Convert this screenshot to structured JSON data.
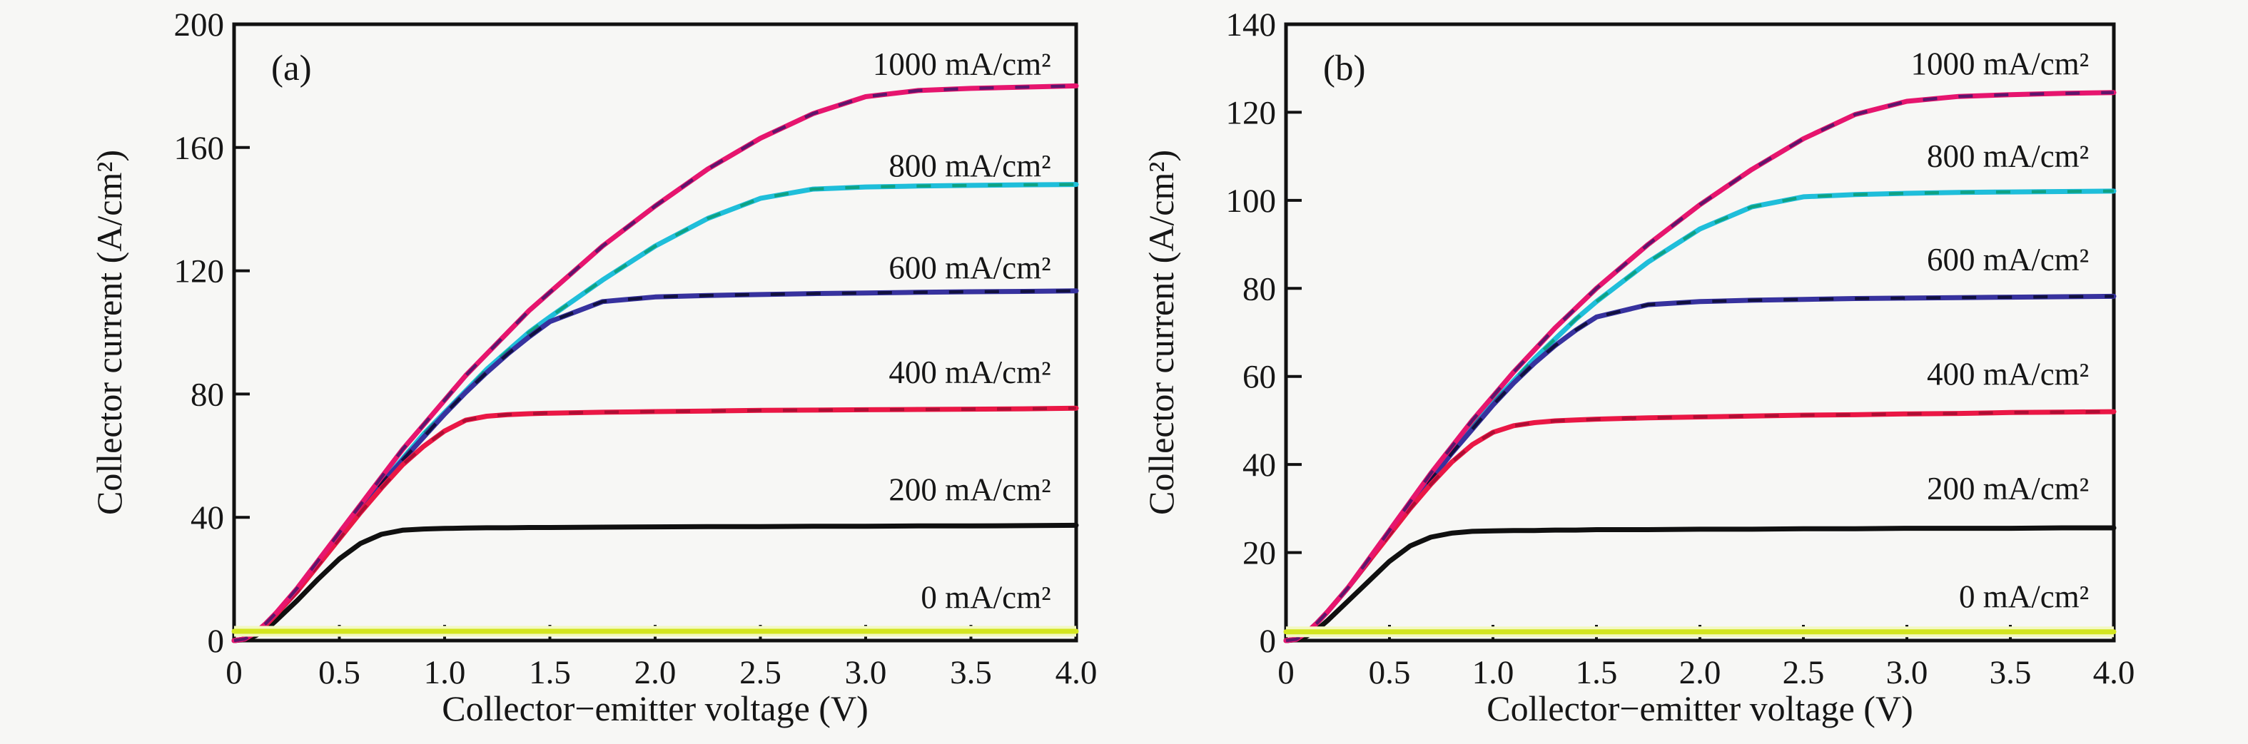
{
  "figure": {
    "background": "#f7f7f5",
    "axis_color": "#111111",
    "text_color": "#161616"
  },
  "chart_data": [
    {
      "type": "line",
      "panel_label": "(a)",
      "xlabel": "Collector−emitter voltage (V)",
      "ylabel": "Collector current (A/cm²)",
      "xlim": [
        0,
        4.0
      ],
      "ylim": [
        0,
        200
      ],
      "grid": false,
      "legend_position": "inline-right-above-curves",
      "xticks": [
        {
          "v": 0,
          "label": "0"
        },
        {
          "v": 0.5,
          "label": "0.5"
        },
        {
          "v": 1.0,
          "label": "1.0"
        },
        {
          "v": 1.5,
          "label": "1.5"
        },
        {
          "v": 2.0,
          "label": "2.0"
        },
        {
          "v": 2.5,
          "label": "2.5"
        },
        {
          "v": 3.0,
          "label": "3.0"
        },
        {
          "v": 3.5,
          "label": "3.5"
        },
        {
          "v": 4.0,
          "label": "4.0"
        }
      ],
      "yticks": [
        {
          "v": 0,
          "label": "0"
        },
        {
          "v": 40,
          "label": "40"
        },
        {
          "v": 80,
          "label": "80"
        },
        {
          "v": 120,
          "label": "120"
        },
        {
          "v": 160,
          "label": "160"
        },
        {
          "v": 200,
          "label": "200"
        }
      ],
      "x": [
        0,
        0.05,
        0.1,
        0.15,
        0.2,
        0.3,
        0.4,
        0.5,
        0.6,
        0.7,
        0.8,
        0.9,
        1.0,
        1.1,
        1.2,
        1.3,
        1.4,
        1.5,
        1.75,
        2.0,
        2.25,
        2.5,
        2.75,
        3.0,
        3.25,
        3.5,
        3.75,
        4.0
      ],
      "series": [
        {
          "name": "1000 mA/cm²",
          "color": "#e6156e",
          "dash_color": "#46156b",
          "saturation_current": 180,
          "label_y": 187,
          "values": [
            0,
            0.5,
            2.5,
            5.5,
            9,
            17,
            26,
            35,
            44,
            53,
            62,
            70,
            78,
            86,
            93,
            100,
            107,
            113,
            128,
            141,
            153,
            163,
            171,
            176.5,
            178.5,
            179.2,
            179.6,
            180
          ]
        },
        {
          "name": "800 mA/cm²",
          "color": "#1fbeda",
          "dash_color": "#0c9e74",
          "saturation_current": 148,
          "label_y": 154,
          "values": [
            0,
            0.5,
            2.5,
            5,
            8.5,
            16,
            25,
            34,
            43,
            51,
            59,
            67,
            74,
            81,
            88,
            94,
            100,
            105,
            117,
            128,
            137,
            143.5,
            146.5,
            147.2,
            147.5,
            147.7,
            147.9,
            148
          ]
        },
        {
          "name": "600 mA/cm²",
          "color": "#37329e",
          "dash_color": "#0b0b2e",
          "saturation_current": 113.5,
          "label_y": 121,
          "values": [
            0,
            0.5,
            2.5,
            5,
            8.5,
            16,
            25,
            34,
            42.5,
            51,
            58.5,
            66,
            73.5,
            80.5,
            87,
            93,
            98.5,
            103.5,
            110,
            111.5,
            112,
            112.3,
            112.6,
            112.8,
            113,
            113.2,
            113.3,
            113.5
          ]
        },
        {
          "name": "400 mA/cm²",
          "color": "#ea1745",
          "dash_color": "#a30d31",
          "saturation_current": 75.4,
          "label_y": 87,
          "values": [
            0,
            0.5,
            2.5,
            5,
            8.5,
            16,
            24.5,
            33,
            41.5,
            49.5,
            57,
            63,
            68,
            71.5,
            72.8,
            73.3,
            73.6,
            73.8,
            74.1,
            74.3,
            74.5,
            74.7,
            74.8,
            74.9,
            75,
            75.1,
            75.2,
            75.4
          ]
        },
        {
          "name": "200 mA/cm²",
          "color": "#101010",
          "dash_color": null,
          "saturation_current": 37.5,
          "label_y": 49,
          "values": [
            0,
            0.3,
            1.5,
            3.5,
            6.5,
            13,
            20,
            26.5,
            31.5,
            34.5,
            35.8,
            36.2,
            36.4,
            36.5,
            36.6,
            36.6,
            36.7,
            36.7,
            36.8,
            36.9,
            37,
            37,
            37.1,
            37.1,
            37.2,
            37.2,
            37.3,
            37.4
          ]
        },
        {
          "name": "0 mA/cm²",
          "color": "#d3e51f",
          "dash_color": null,
          "saturation_current": 3,
          "label_y": 14,
          "halo_color": "#f3f8c2",
          "values": [
            3,
            3,
            3,
            3,
            3,
            3,
            3,
            3,
            3,
            3,
            3,
            3,
            3,
            3,
            3,
            3,
            3,
            3,
            3,
            3,
            3,
            3,
            3,
            3,
            3,
            3,
            3,
            3
          ]
        }
      ]
    },
    {
      "type": "line",
      "panel_label": "(b)",
      "xlabel": "Collector−emitter voltage (V)",
      "ylabel": "Collector current (A/cm²)",
      "xlim": [
        0,
        4.0
      ],
      "ylim": [
        0,
        140
      ],
      "grid": false,
      "legend_position": "inline-right-above-curves",
      "xticks": [
        {
          "v": 0,
          "label": "0"
        },
        {
          "v": 0.5,
          "label": "0.5"
        },
        {
          "v": 1.0,
          "label": "1.0"
        },
        {
          "v": 1.5,
          "label": "1.5"
        },
        {
          "v": 2.0,
          "label": "2.0"
        },
        {
          "v": 2.5,
          "label": "2.5"
        },
        {
          "v": 3.0,
          "label": "3.0"
        },
        {
          "v": 3.5,
          "label": "3.5"
        },
        {
          "v": 4.0,
          "label": "4.0"
        }
      ],
      "yticks": [
        {
          "v": 0,
          "label": "0"
        },
        {
          "v": 20,
          "label": "20"
        },
        {
          "v": 40,
          "label": "40"
        },
        {
          "v": 60,
          "label": "60"
        },
        {
          "v": 80,
          "label": "80"
        },
        {
          "v": 100,
          "label": "100"
        },
        {
          "v": 120,
          "label": "120"
        },
        {
          "v": 140,
          "label": "140"
        }
      ],
      "x": [
        0,
        0.05,
        0.1,
        0.15,
        0.2,
        0.3,
        0.4,
        0.5,
        0.6,
        0.7,
        0.8,
        0.9,
        1.0,
        1.1,
        1.2,
        1.3,
        1.4,
        1.5,
        1.75,
        2.0,
        2.25,
        2.5,
        2.75,
        3.0,
        3.25,
        3.5,
        3.75,
        4.0
      ],
      "series": [
        {
          "name": "1000 mA/cm²",
          "color": "#e6156e",
          "dash_color": "#46156b",
          "saturation_current": 124.5,
          "label_y": 131,
          "values": [
            0,
            0.3,
            1.8,
            4,
            6.5,
            12,
            18.5,
            25,
            31.5,
            38,
            44,
            50,
            55.5,
            61,
            66,
            71,
            75.5,
            80,
            90,
            99,
            107,
            114,
            119.5,
            122.5,
            123.6,
            124,
            124.3,
            124.5
          ]
        },
        {
          "name": "800 mA/cm²",
          "color": "#1fbeda",
          "dash_color": "#0c9e74",
          "saturation_current": 102.1,
          "label_y": 110,
          "values": [
            0,
            0.3,
            1.8,
            4,
            6.5,
            12,
            18,
            24.5,
            31,
            37,
            43,
            48.5,
            54,
            59,
            64,
            68.5,
            73,
            77,
            86,
            93.5,
            98.5,
            100.8,
            101.3,
            101.6,
            101.8,
            101.9,
            102,
            102.1
          ]
        },
        {
          "name": "600 mA/cm²",
          "color": "#37329e",
          "dash_color": "#0b0b2e",
          "saturation_current": 78.2,
          "label_y": 86.5,
          "values": [
            0,
            0.3,
            1.8,
            4,
            6.5,
            12,
            18,
            24.5,
            30.5,
            36.5,
            42.5,
            48,
            53.5,
            58.5,
            63,
            67,
            70.5,
            73.5,
            76.3,
            77,
            77.3,
            77.5,
            77.7,
            77.8,
            77.9,
            78,
            78.1,
            78.2
          ]
        },
        {
          "name": "400 mA/cm²",
          "color": "#ea1745",
          "dash_color": "#a30d31",
          "saturation_current": 52,
          "label_y": 60.5,
          "values": [
            0,
            0.3,
            1.8,
            4,
            6.5,
            12,
            18,
            24,
            30,
            35.5,
            40.5,
            44.5,
            47.3,
            48.8,
            49.5,
            49.9,
            50.1,
            50.3,
            50.6,
            50.8,
            51,
            51.2,
            51.3,
            51.5,
            51.6,
            51.8,
            51.9,
            52
          ]
        },
        {
          "name": "200 mA/cm²",
          "color": "#101010",
          "dash_color": null,
          "saturation_current": 25.6,
          "label_y": 34.5,
          "values": [
            0,
            0.2,
            1,
            2.5,
            4.5,
            9,
            13.5,
            18,
            21.5,
            23.5,
            24.4,
            24.8,
            24.9,
            25,
            25,
            25.1,
            25.1,
            25.2,
            25.2,
            25.3,
            25.3,
            25.4,
            25.4,
            25.5,
            25.5,
            25.5,
            25.6,
            25.6
          ]
        },
        {
          "name": "0 mA/cm²",
          "color": "#d3e51f",
          "dash_color": null,
          "saturation_current": 2,
          "label_y": 10,
          "halo_color": "#f3f8c2",
          "values": [
            2,
            2,
            2,
            2,
            2,
            2,
            2,
            2,
            2,
            2,
            2,
            2,
            2,
            2,
            2,
            2,
            2,
            2,
            2,
            2,
            2,
            2,
            2,
            2,
            2,
            2,
            2,
            2
          ]
        }
      ]
    }
  ]
}
